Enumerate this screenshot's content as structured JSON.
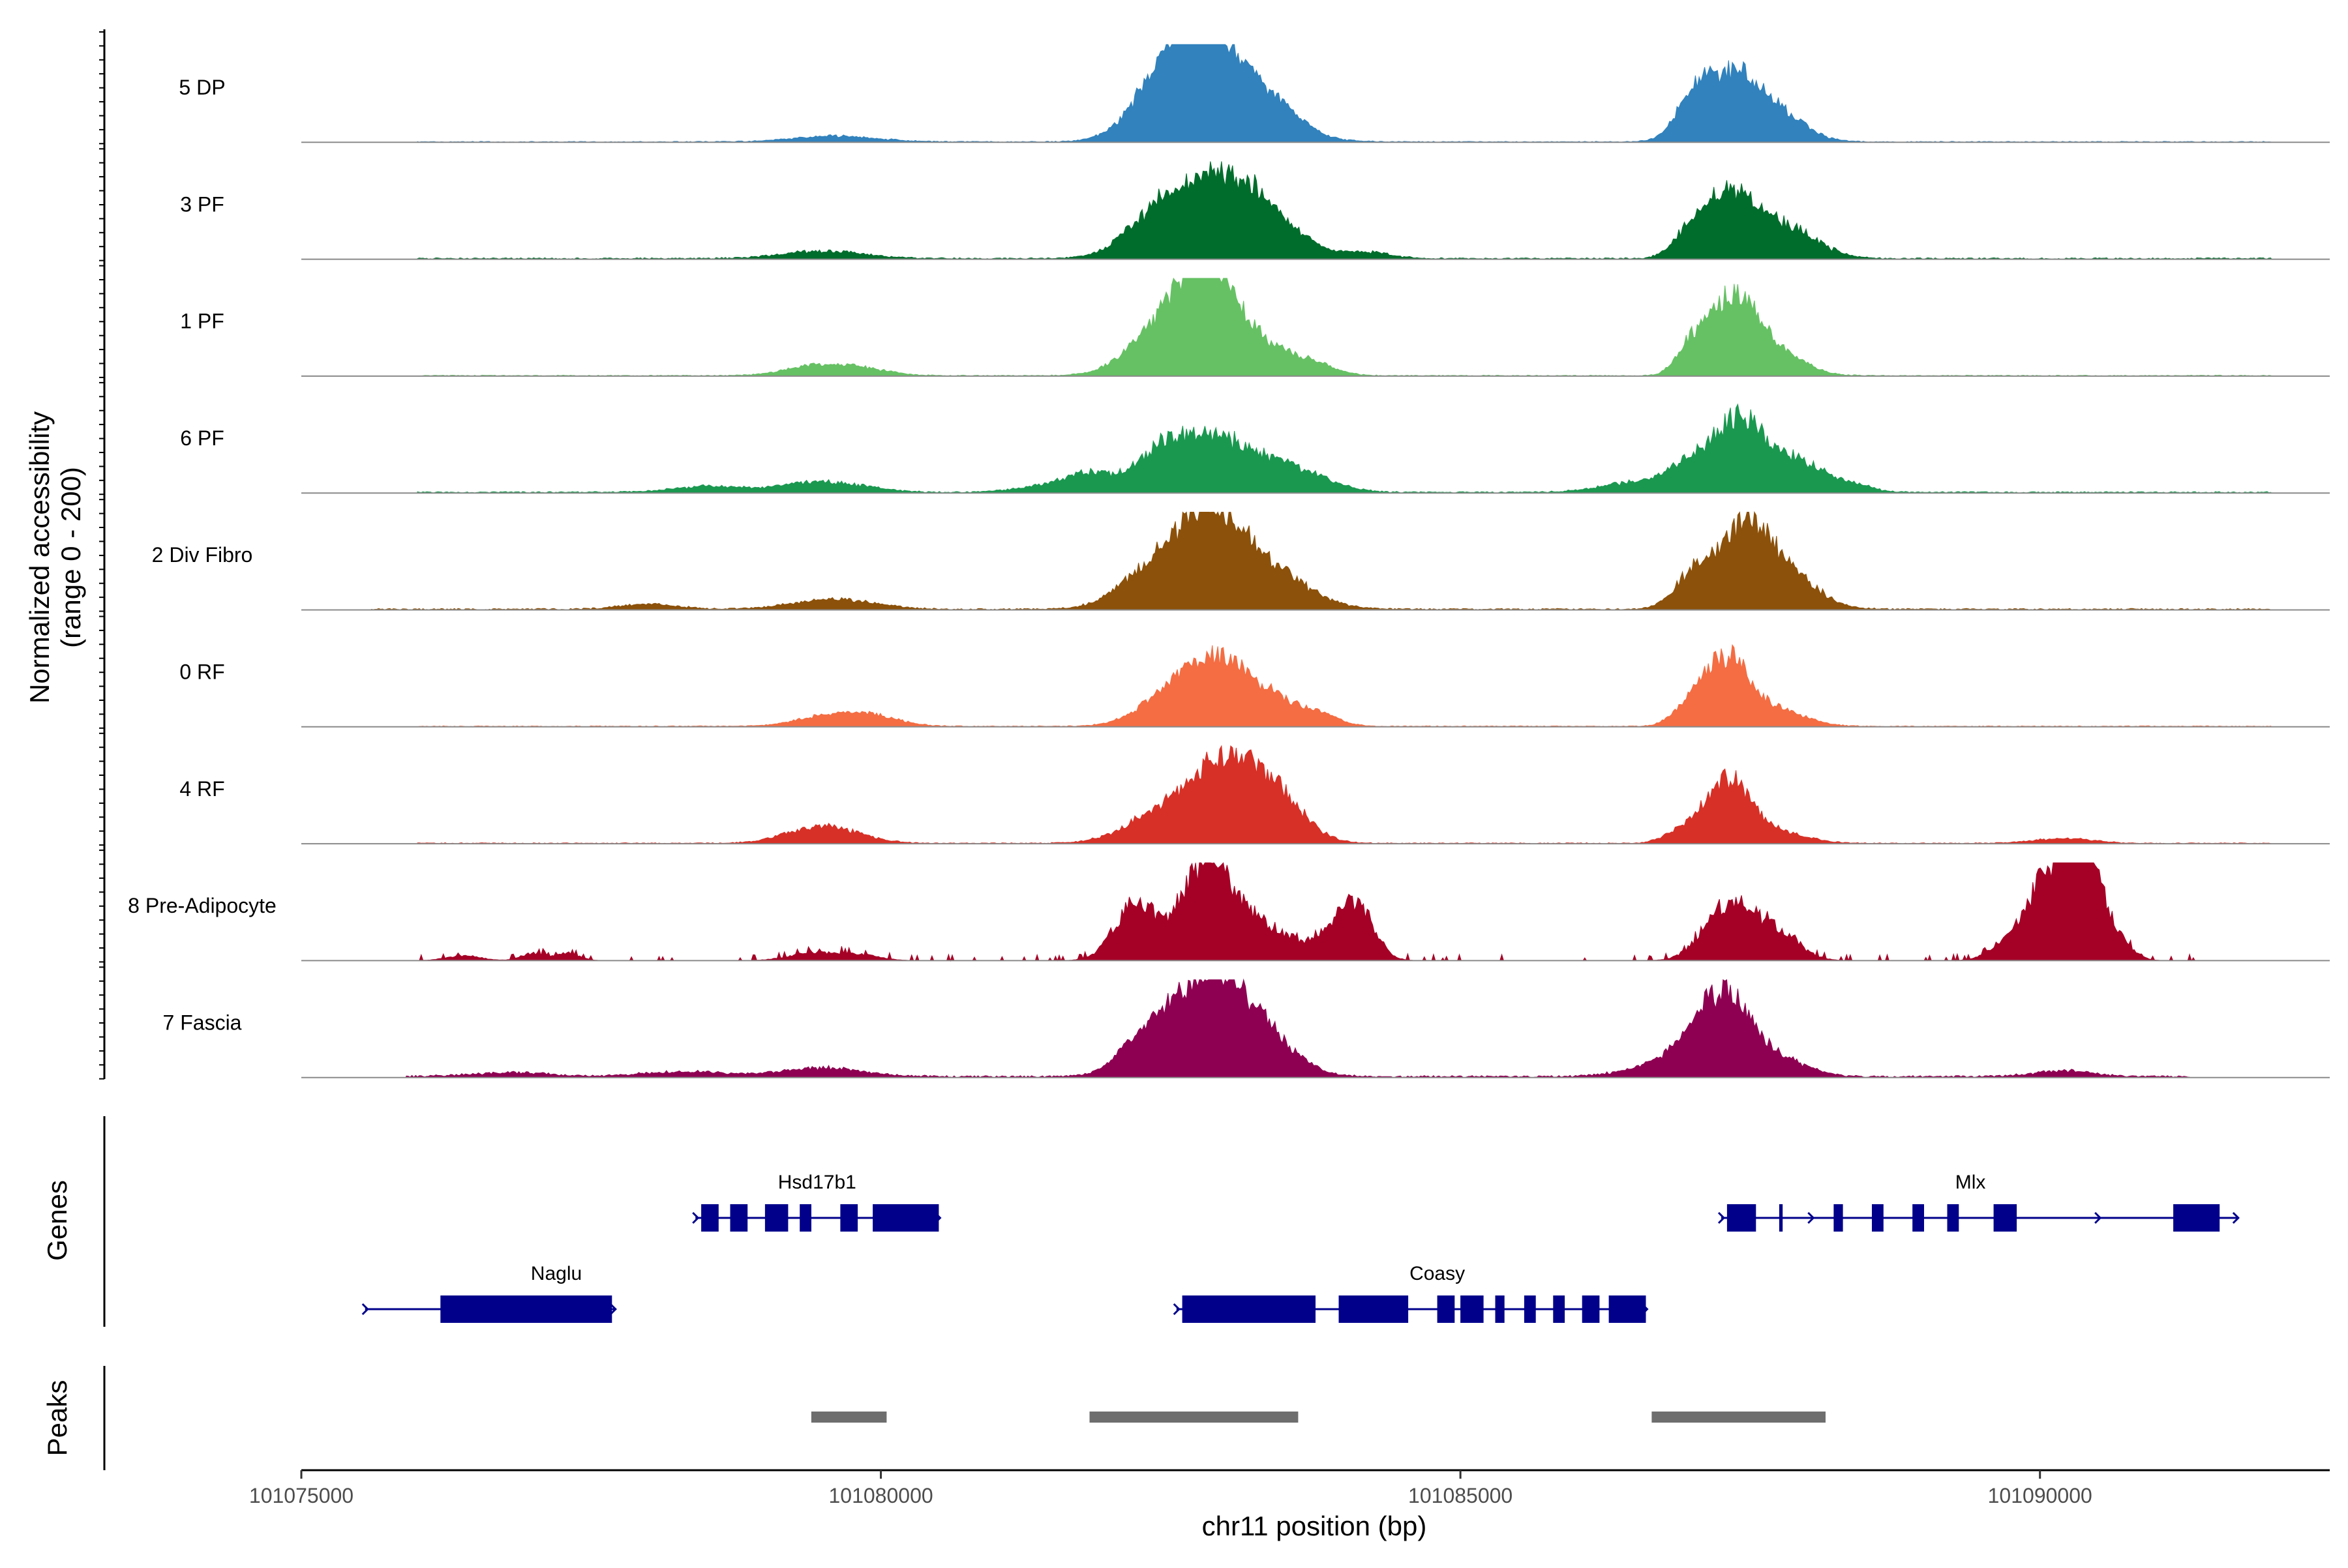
{
  "chart_data": {
    "type": "area",
    "title": "",
    "xlabel": "chr11 position (bp)",
    "ylabel": "Normalized accessibility",
    "ylabel_sub": "(range 0 - 200)",
    "xlim": [
      101075000,
      101092500
    ],
    "ylim": [
      0,
      200
    ],
    "x_ticks": [
      101075000,
      101080000,
      101085000,
      101090000
    ],
    "x_tick_labels": [
      "101075000",
      "101080000",
      "101085000",
      "101090000"
    ],
    "series": [
      {
        "name": "5 DP",
        "color": "#3182BD",
        "baseline": 2,
        "scale": 1.0,
        "noise_start": 101076000,
        "noise_end": 101092000,
        "peaks": [
          [
            101079600,
            350,
            12
          ],
          [
            101082450,
            280,
            80
          ],
          [
            101082800,
            320,
            150
          ],
          [
            101083000,
            420,
            70
          ],
          [
            101083450,
            200,
            28
          ],
          [
            101087000,
            150,
            60
          ],
          [
            101087350,
            250,
            135
          ],
          [
            101087800,
            220,
            40
          ]
        ]
      },
      {
        "name": "3 PF",
        "color": "#006D2C",
        "baseline": 3,
        "scale": 1.0,
        "noise_start": 101076000,
        "noise_end": 101092000,
        "peaks": [
          [
            101079500,
            350,
            15
          ],
          [
            101082400,
            280,
            85
          ],
          [
            101082950,
            330,
            150
          ],
          [
            101083400,
            300,
            45
          ],
          [
            101084200,
            200,
            12
          ],
          [
            101087000,
            150,
            45
          ],
          [
            101087350,
            230,
            130
          ],
          [
            101087850,
            250,
            55
          ]
        ]
      },
      {
        "name": "1 PF",
        "color": "#66C164",
        "baseline": 2,
        "scale": 1.0,
        "noise_start": 101076000,
        "noise_end": 101092000,
        "peaks": [
          [
            101079400,
            250,
            18
          ],
          [
            101079800,
            250,
            15
          ],
          [
            101082450,
            300,
            90
          ],
          [
            101082800,
            220,
            140
          ],
          [
            101083050,
            350,
            85
          ],
          [
            101083700,
            200,
            20
          ],
          [
            101087000,
            130,
            55
          ],
          [
            101087350,
            200,
            150
          ],
          [
            101087700,
            250,
            45
          ]
        ]
      },
      {
        "name": "6 PF",
        "color": "#1A9850",
        "baseline": 3,
        "scale": 1.0,
        "noise_start": 101076000,
        "noise_end": 101092000,
        "peaks": [
          [
            101078500,
            300,
            12
          ],
          [
            101079500,
            350,
            22
          ],
          [
            101081400,
            250,
            12
          ],
          [
            101081800,
            200,
            35
          ],
          [
            101082450,
            250,
            85
          ],
          [
            101082950,
            300,
            95
          ],
          [
            101083550,
            300,
            45
          ],
          [
            101086500,
            300,
            20
          ],
          [
            101087000,
            200,
            55
          ],
          [
            101087400,
            200,
            140
          ],
          [
            101087850,
            220,
            65
          ],
          [
            101088300,
            200,
            20
          ]
        ]
      },
      {
        "name": "2 Div Fibro",
        "color": "#8C510A",
        "baseline": 3,
        "scale": 1.0,
        "noise_start": 101075600,
        "noise_end": 101092000,
        "peaks": [
          [
            101078000,
            250,
            10
          ],
          [
            101079600,
            350,
            20
          ],
          [
            101082400,
            300,
            90
          ],
          [
            101082850,
            260,
            150
          ],
          [
            101083300,
            350,
            80
          ],
          [
            101087000,
            160,
            65
          ],
          [
            101087450,
            220,
            170
          ],
          [
            101087850,
            250,
            60
          ]
        ]
      },
      {
        "name": "0 RF",
        "color": "#F46D43",
        "baseline": 2,
        "scale": 1.0,
        "noise_start": 101076000,
        "noise_end": 101092000,
        "peaks": [
          [
            101079500,
            250,
            18
          ],
          [
            101079900,
            250,
            22
          ],
          [
            101082400,
            250,
            35
          ],
          [
            101082850,
            280,
            130
          ],
          [
            101083350,
            300,
            50
          ],
          [
            101083800,
            150,
            15
          ],
          [
            101087000,
            150,
            45
          ],
          [
            101087300,
            180,
            130
          ],
          [
            101087700,
            250,
            35
          ]
        ]
      },
      {
        "name": "4 RF",
        "color": "#D73027",
        "baseline": 2,
        "scale": 1.0,
        "noise_start": 101076000,
        "noise_end": 101092000,
        "peaks": [
          [
            101079500,
            300,
            35
          ],
          [
            101082400,
            300,
            55
          ],
          [
            101082950,
            280,
            150
          ],
          [
            101083400,
            250,
            90
          ],
          [
            101086900,
            150,
            20
          ],
          [
            101087300,
            200,
            130
          ],
          [
            101087750,
            250,
            20
          ],
          [
            101090200,
            250,
            10
          ]
        ]
      },
      {
        "name": "8 Pre-Adipocyte",
        "color": "#A50026",
        "baseline": 0,
        "scale": 1.0,
        "noise_start": 101076000,
        "noise_end": 101091700,
        "peaks": [
          [
            101076400,
            150,
            10
          ],
          [
            101077000,
            100,
            15
          ],
          [
            101077300,
            100,
            15
          ],
          [
            101079400,
            200,
            15
          ],
          [
            101079800,
            180,
            12
          ],
          [
            101082200,
            180,
            120
          ],
          [
            101082800,
            200,
            180
          ],
          [
            101083200,
            300,
            80
          ],
          [
            101083900,
            200,
            35
          ],
          [
            101084100,
            150,
            100
          ],
          [
            101087300,
            200,
            110
          ],
          [
            101087700,
            200,
            60
          ],
          [
            101089700,
            150,
            25
          ],
          [
            101090100,
            200,
            180
          ],
          [
            101090400,
            150,
            200
          ],
          [
            101090700,
            120,
            25
          ]
        ]
      },
      {
        "name": "7 Fascia",
        "color": "#8E0152",
        "baseline": 4,
        "scale": 1.0,
        "noise_start": 101075900,
        "noise_end": 101091300,
        "peaks": [
          [
            101076800,
            350,
            8
          ],
          [
            101078300,
            350,
            10
          ],
          [
            101079500,
            350,
            18
          ],
          [
            101082350,
            250,
            90
          ],
          [
            101082800,
            260,
            150
          ],
          [
            101083200,
            300,
            110
          ],
          [
            101086700,
            300,
            20
          ],
          [
            101087000,
            200,
            50
          ],
          [
            101087300,
            200,
            150
          ],
          [
            101087700,
            250,
            40
          ],
          [
            101090200,
            250,
            12
          ]
        ]
      }
    ],
    "genes": [
      {
        "name": "Hsd17b1",
        "strand": "+",
        "row": 1,
        "start": 101078400,
        "end": 101080500,
        "exons": [
          [
            101078450,
            101078600
          ],
          [
            101078700,
            101078850
          ],
          [
            101079000,
            101079200
          ],
          [
            101079300,
            101079400
          ],
          [
            101079650,
            101079800
          ],
          [
            101079930,
            101080500
          ]
        ]
      },
      {
        "name": "Naglu",
        "strand": "+",
        "row": 2,
        "start": 101075550,
        "end": 101077700,
        "exons": [
          [
            101076200,
            101077680
          ]
        ]
      },
      {
        "name": "Coasy",
        "strand": "+",
        "row": 2,
        "start": 101082550,
        "end": 101086600,
        "exons": [
          [
            101082600,
            101083750
          ],
          [
            101083950,
            101084550
          ],
          [
            101084800,
            101084950
          ],
          [
            101085000,
            101085200
          ],
          [
            101085300,
            101085380
          ],
          [
            101085550,
            101085650
          ],
          [
            101085800,
            101085900
          ],
          [
            101086050,
            101086200
          ],
          [
            101086280,
            101086600
          ]
        ]
      },
      {
        "name": "Mlx",
        "strand": "+",
        "row": 1,
        "start": 101087250,
        "end": 101091700,
        "exons": [
          [
            101087300,
            101087550
          ],
          [
            101087750,
            101087780
          ],
          [
            101088220,
            101088300
          ],
          [
            101088550,
            101088650
          ],
          [
            101088900,
            101089000
          ],
          [
            101089200,
            101089300
          ],
          [
            101089600,
            101089800
          ],
          [
            101091150,
            101091550
          ]
        ]
      }
    ],
    "peaks_track": [
      [
        101079400,
        101080050
      ],
      [
        101081800,
        101083600
      ],
      [
        101086650,
        101088150
      ]
    ]
  },
  "labels": {
    "genes_title": "Genes",
    "peaks_title": "Peaks"
  }
}
